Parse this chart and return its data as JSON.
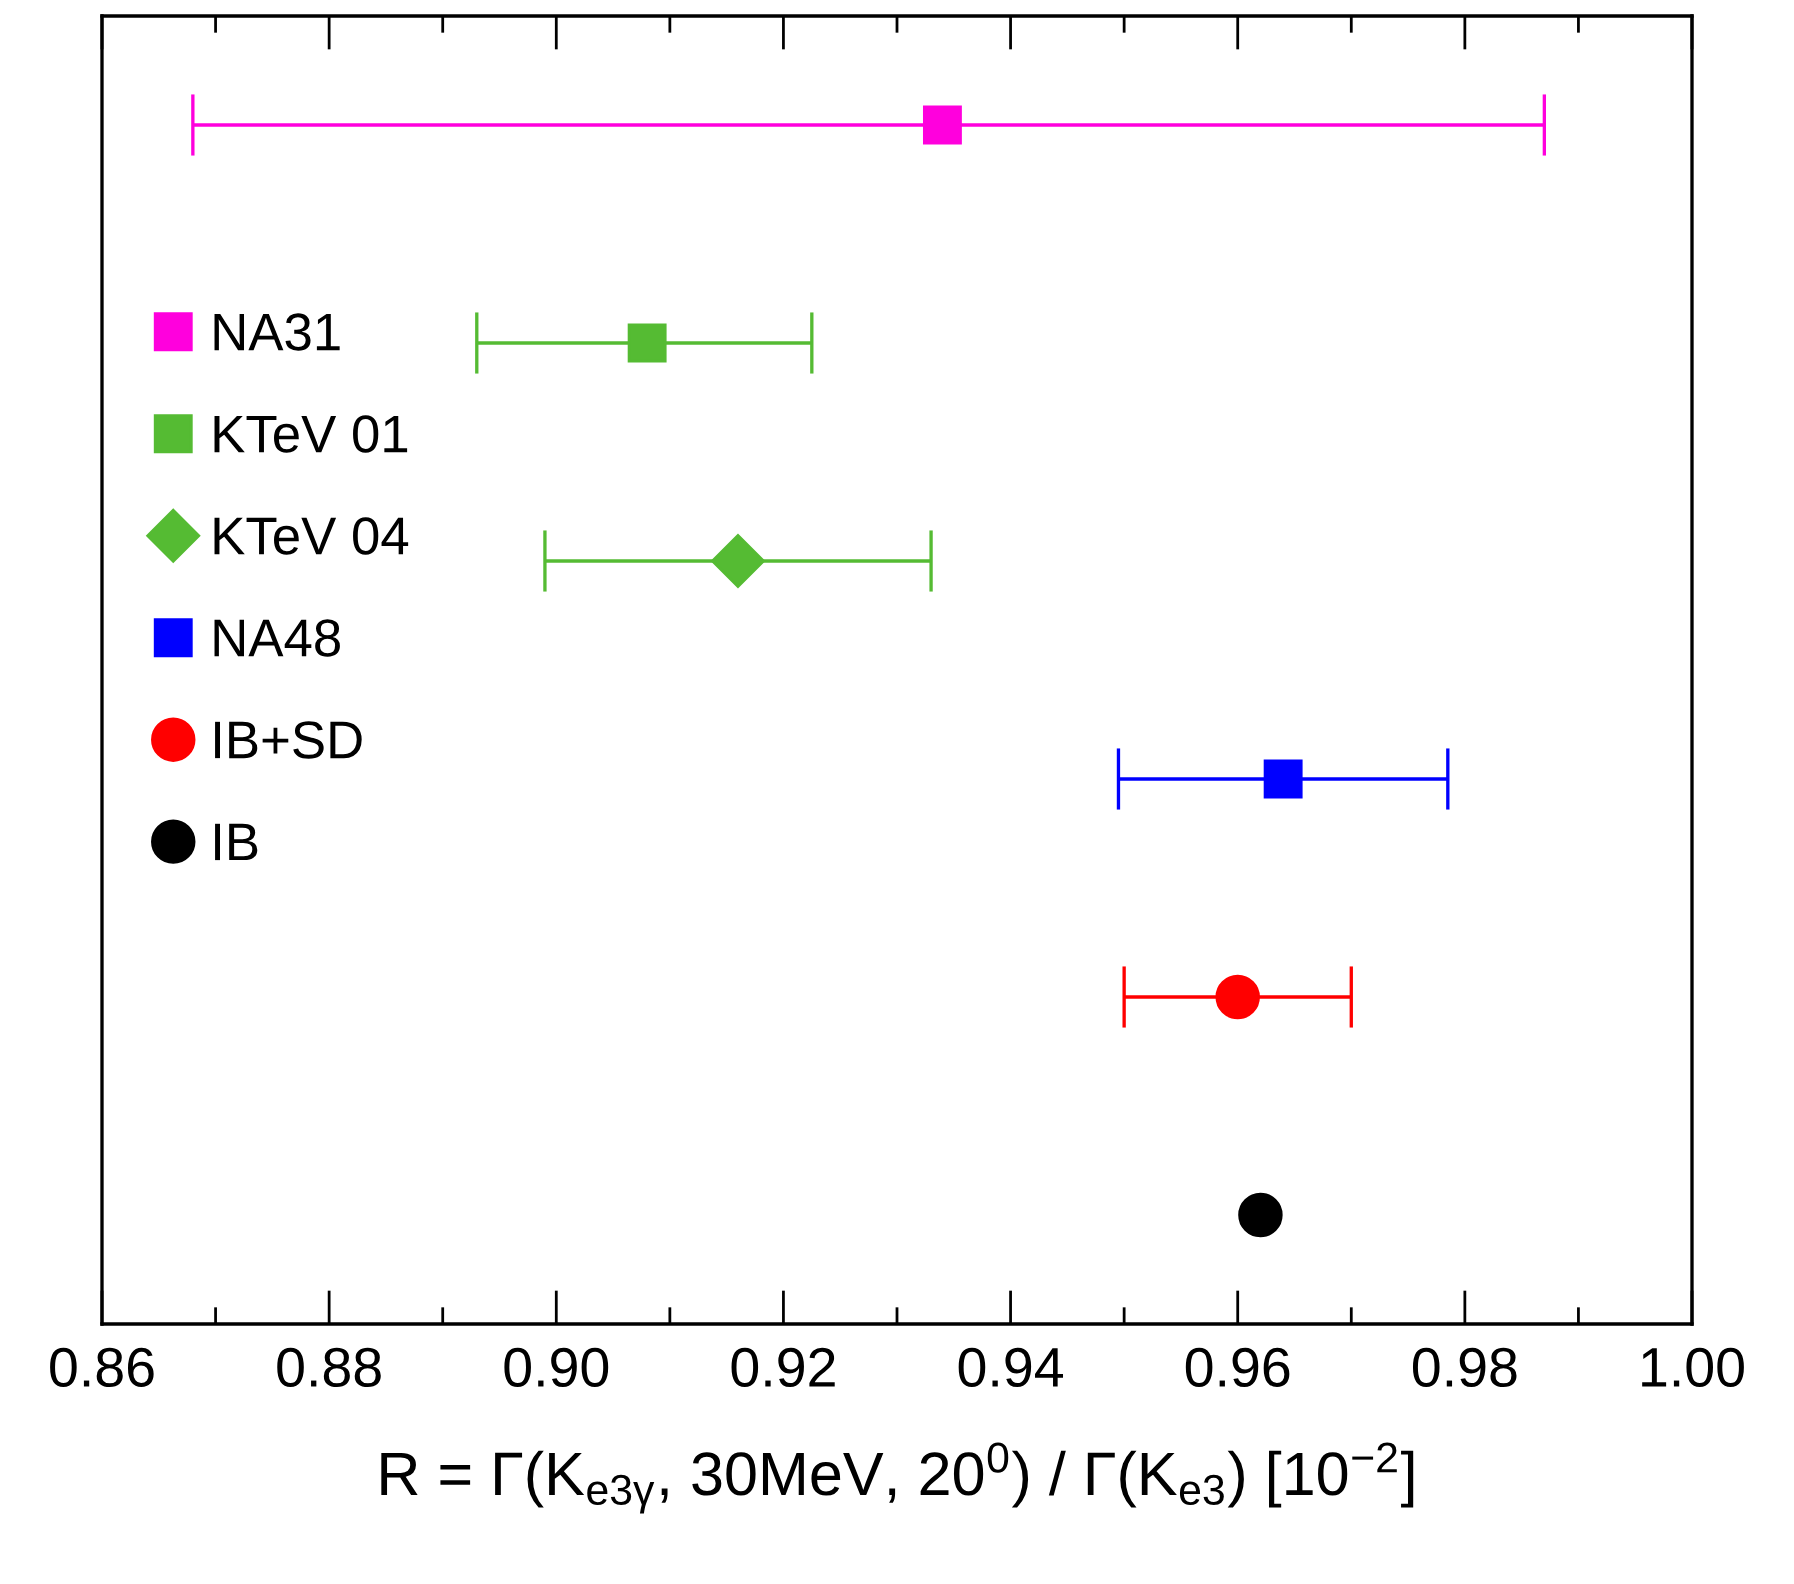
{
  "chart_data": {
    "type": "scatter",
    "orientation": "horizontal",
    "xlabel": "R = Γ(K$_{e3γ}$, 30MeV, 20$^{0}$) / Γ(K$_{e3}$) [10$^{−2}$]",
    "categories": [
      null,
      null,
      null,
      null,
      null,
      null
    ],
    "series": [
      {
        "name": "NA31",
        "color": "#ff00dd",
        "marker": "square",
        "values": [
          0.934,
          null,
          null,
          null,
          null,
          null
        ],
        "errors": [
          [
            0.868,
            0.987
          ],
          null,
          null,
          null,
          null,
          null
        ]
      },
      {
        "name": "KTeV 01",
        "color": "#55bb33",
        "marker": "square",
        "values": [
          null,
          0.908,
          null,
          null,
          null,
          null
        ],
        "errors": [
          null,
          [
            0.893,
            0.9225
          ],
          null,
          null,
          null,
          null
        ]
      },
      {
        "name": "KTeV 04",
        "color": "#55bb33",
        "marker": "diamond",
        "values": [
          null,
          null,
          0.916,
          null,
          null,
          null
        ],
        "errors": [
          null,
          null,
          [
            0.899,
            0.933
          ],
          null,
          null,
          null
        ]
      },
      {
        "name": "NA48",
        "color": "#0000ff",
        "marker": "square",
        "values": [
          null,
          null,
          null,
          0.964,
          null,
          null
        ],
        "errors": [
          null,
          null,
          null,
          [
            0.9495,
            0.9785
          ],
          null,
          null
        ]
      },
      {
        "name": "IB+SD",
        "color": "#ff0000",
        "marker": "circle",
        "values": [
          null,
          null,
          null,
          null,
          0.96,
          null
        ],
        "errors": [
          null,
          null,
          null,
          null,
          [
            0.95,
            0.97
          ],
          null
        ]
      },
      {
        "name": "IB",
        "color": "#000000",
        "marker": "circle",
        "values": [
          null,
          null,
          null,
          null,
          null,
          0.962
        ]
      }
    ],
    "xlim": [
      0.86,
      1.0
    ],
    "xticks": [
      {
        "value": 0.86,
        "label": "0.86"
      },
      {
        "value": 0.87,
        "label": null
      },
      {
        "value": 0.88,
        "label": "0.88"
      },
      {
        "value": 0.89,
        "label": null
      },
      {
        "value": 0.9,
        "label": "0.90"
      },
      {
        "value": 0.91,
        "label": null
      },
      {
        "value": 0.92,
        "label": "0.92"
      },
      {
        "value": 0.93,
        "label": null
      },
      {
        "value": 0.94,
        "label": "0.94"
      },
      {
        "value": 0.95,
        "label": null
      },
      {
        "value": 0.96,
        "label": "0.96"
      },
      {
        "value": 0.97,
        "label": null
      },
      {
        "value": 0.98,
        "label": "0.98"
      },
      {
        "value": 0.99,
        "label": null
      },
      {
        "value": 1.0,
        "label": "1.00"
      }
    ],
    "tick_labels": "x",
    "grid": false,
    "legend": "left"
  }
}
